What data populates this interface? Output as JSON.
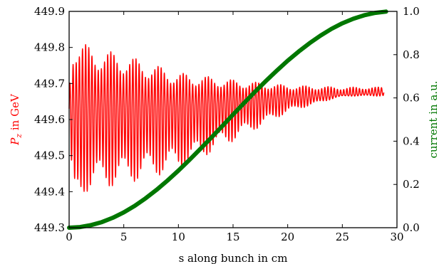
{
  "chart_data": {
    "type": "line",
    "title": "",
    "xlabel": "s along bunch in cm",
    "ylabel_left": "P_z in GeV",
    "ylabel_left_main": "P",
    "ylabel_left_sub": "z",
    "ylabel_left_rest": " in GeV",
    "ylabel_right": "current in a.u.",
    "xlim": [
      0,
      30
    ],
    "ylim_left": [
      449.3,
      449.9
    ],
    "ylim_right": [
      0.0,
      1.0
    ],
    "x_ticks": [
      "0",
      "5",
      "10",
      "15",
      "20",
      "25",
      "30"
    ],
    "y_left_ticks": [
      "449.3",
      "449.4",
      "449.5",
      "449.6",
      "449.7",
      "449.8",
      "449.9"
    ],
    "y_right_ticks": [
      "0.0",
      "0.2",
      "0.4",
      "0.6",
      "0.8",
      "1.0"
    ],
    "grid": false,
    "colors": {
      "left_axis": "#ff0000",
      "right_axis": "#007700"
    },
    "series": [
      {
        "axis": "left",
        "color": "#ff0000",
        "style": "oscillating-line",
        "x_range": [
          0.0,
          28.8
        ],
        "mean": [
          [
            0.0,
            449.63
          ],
          [
            10.0,
            449.635
          ],
          [
            20.0,
            449.66
          ],
          [
            28.8,
            449.675
          ]
        ],
        "upper_envelope": [
          [
            0.0,
            449.7
          ],
          [
            0.4,
            449.83
          ],
          [
            2.0,
            449.8
          ],
          [
            5.0,
            449.78
          ],
          [
            10.0,
            449.73
          ],
          [
            15.0,
            449.71
          ],
          [
            20.0,
            449.695
          ],
          [
            25.0,
            449.69
          ],
          [
            28.8,
            449.69
          ]
        ],
        "lower_envelope": [
          [
            0.0,
            449.55
          ],
          [
            0.4,
            449.32
          ],
          [
            1.5,
            449.4
          ],
          [
            5.0,
            449.42
          ],
          [
            10.0,
            449.46
          ],
          [
            15.0,
            449.54
          ],
          [
            20.0,
            449.62
          ],
          [
            25.0,
            449.665
          ],
          [
            28.8,
            449.665
          ]
        ],
        "approx_cycles": 100
      },
      {
        "axis": "right",
        "color": "#007700",
        "style": "thick-line",
        "x": [
          0,
          1,
          2,
          3,
          4,
          5,
          6,
          7,
          8,
          9,
          10,
          11,
          12,
          13,
          14,
          15,
          16,
          17,
          18,
          19,
          20,
          21,
          22,
          23,
          24,
          25,
          26,
          27,
          28,
          29
        ],
        "values": [
          0.0,
          0.003,
          0.012,
          0.026,
          0.046,
          0.071,
          0.101,
          0.136,
          0.175,
          0.218,
          0.264,
          0.313,
          0.364,
          0.416,
          0.469,
          0.523,
          0.576,
          0.628,
          0.678,
          0.726,
          0.772,
          0.814,
          0.853,
          0.888,
          0.919,
          0.945,
          0.966,
          0.982,
          0.993,
          0.999
        ]
      }
    ]
  }
}
